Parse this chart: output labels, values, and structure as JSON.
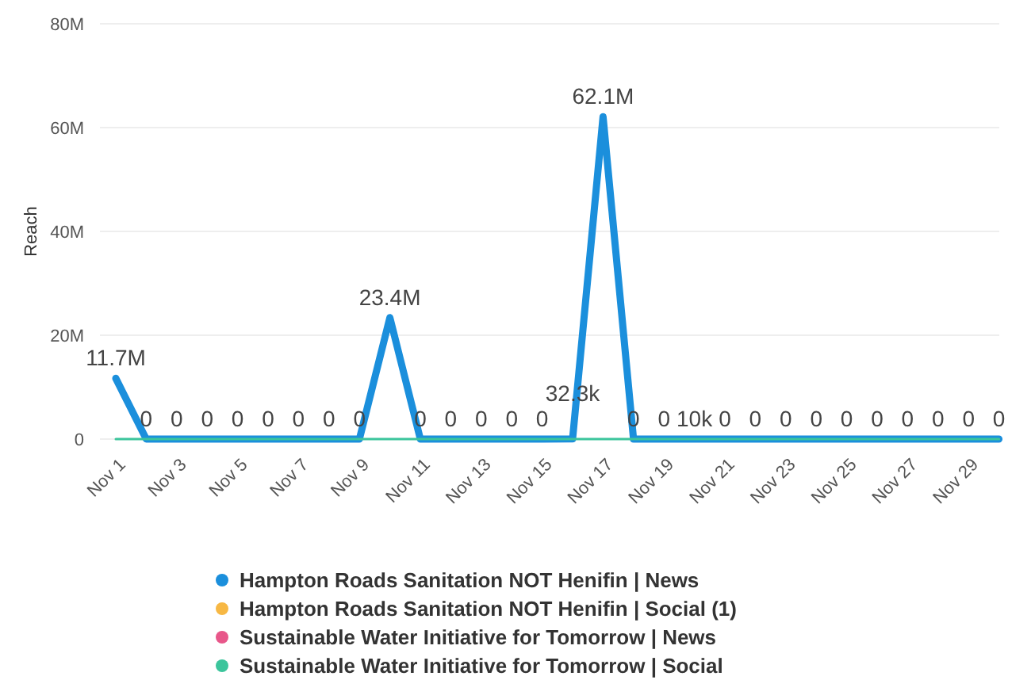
{
  "chart_data": {
    "type": "line",
    "ylabel": "Reach",
    "categories": [
      "Nov 1",
      null,
      "Nov 3",
      null,
      "Nov 5",
      null,
      "Nov 7",
      null,
      "Nov 9",
      null,
      "Nov 11",
      null,
      "Nov 13",
      null,
      "Nov 15",
      null,
      "Nov 17",
      null,
      "Nov 19",
      null,
      "Nov 21",
      null,
      "Nov 23",
      null,
      "Nov 25",
      null,
      "Nov 27",
      null,
      "Nov 29",
      null
    ],
    "series": [
      {
        "name": "Hampton Roads Sanitation NOT Henifin | News",
        "color": "#1b8fdc",
        "values": [
          11700000,
          0,
          0,
          0,
          0,
          0,
          0,
          0,
          0,
          23400000,
          0,
          0,
          0,
          0,
          0,
          32300,
          62100000,
          0,
          0,
          10000,
          0,
          0,
          0,
          0,
          0,
          0,
          0,
          0,
          0,
          0
        ],
        "value_labels": [
          "11.7M",
          "0",
          "0",
          "0",
          "0",
          "0",
          "0",
          "0",
          "0",
          "23.4M",
          "0",
          "0",
          "0",
          "0",
          "0",
          "32.3k",
          "62.1M",
          "0",
          "0",
          "10k",
          "0",
          "0",
          "0",
          "0",
          "0",
          "0",
          "0",
          "0",
          "0",
          "0"
        ]
      },
      {
        "name": "Hampton Roads Sanitation NOT Henifin | Social (1)",
        "color": "#f7b844",
        "values": [
          null,
          null,
          null,
          null,
          null,
          null,
          null,
          null,
          null,
          null,
          null,
          null,
          null,
          null,
          null,
          null,
          null,
          null,
          null,
          null,
          null,
          null,
          null,
          null,
          null,
          null,
          null,
          null,
          null,
          null
        ]
      },
      {
        "name": "Sustainable Water Initiative for Tomorrow | News",
        "color": "#e8578a",
        "values": [
          null,
          null,
          null,
          null,
          null,
          null,
          null,
          null,
          null,
          null,
          null,
          null,
          null,
          null,
          null,
          null,
          null,
          null,
          null,
          null,
          null,
          null,
          null,
          null,
          null,
          null,
          null,
          null,
          null,
          null
        ]
      },
      {
        "name": "Sustainable Water Initiative for Tomorrow | Social",
        "color": "#3cc59c",
        "values": [
          0,
          0,
          0,
          0,
          0,
          0,
          0,
          0,
          0,
          0,
          0,
          0,
          0,
          0,
          0,
          0,
          0,
          0,
          0,
          0,
          0,
          0,
          0,
          0,
          0,
          0,
          0,
          0,
          0,
          0
        ]
      }
    ],
    "ylim": [
      0,
      80000000
    ],
    "yticks": [
      {
        "value": 0,
        "label": "0"
      },
      {
        "value": 20000000,
        "label": "20M"
      },
      {
        "value": 40000000,
        "label": "40M"
      },
      {
        "value": 60000000,
        "label": "60M"
      },
      {
        "value": 80000000,
        "label": "80M"
      }
    ],
    "grid": "y",
    "legend": "bottom",
    "marker": "none",
    "line_style": "solid"
  }
}
